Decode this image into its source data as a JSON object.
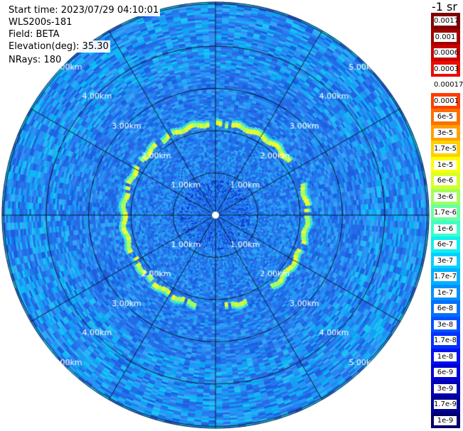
{
  "header": {
    "start_time": "Start time: 2023/07/29 04:10:01",
    "instrument": "WLS200s-181",
    "field": "Field: BETA",
    "elevation": "Elevation(deg): 35.30",
    "nrays": "NRays: 180"
  },
  "range_labels": [
    "1.00km",
    "2.00km",
    "3.00km",
    "4.00km",
    "5.00km"
  ],
  "colorbar": {
    "unit_label": "-1 sr",
    "ticks": [
      "0.0017",
      "0.001",
      "0.0006",
      "0.0003",
      "0.00017",
      "0.0001",
      "6e-5",
      "3e-5",
      "1.7e-5",
      "1e-5",
      "6e-6",
      "3e-6",
      "1.7e-6",
      "1e-6",
      "6e-7",
      "3e-7",
      "1.7e-7",
      "1e-7",
      "6e-8",
      "3e-8",
      "1.7e-8",
      "1e-8",
      "6e-9",
      "3e-9",
      "1.7e-9",
      "1e-9"
    ],
    "colors": [
      "#7e0000",
      "#a00000",
      "#c80000",
      "#ee0a00",
      "#ffffff",
      "#ff3c00",
      "#ff6e00",
      "#ffa000",
      "#ffd000",
      "#ffff00",
      "#d8ff28",
      "#a0ff5a",
      "#6affa0",
      "#3cffc8",
      "#10f0ee",
      "#00d0ff",
      "#00b0ff",
      "#0090ff",
      "#0070ff",
      "#0050ff",
      "#0030ff",
      "#0010f0",
      "#0000d4",
      "#0000b4",
      "#000096",
      "#00006e"
    ]
  }
}
